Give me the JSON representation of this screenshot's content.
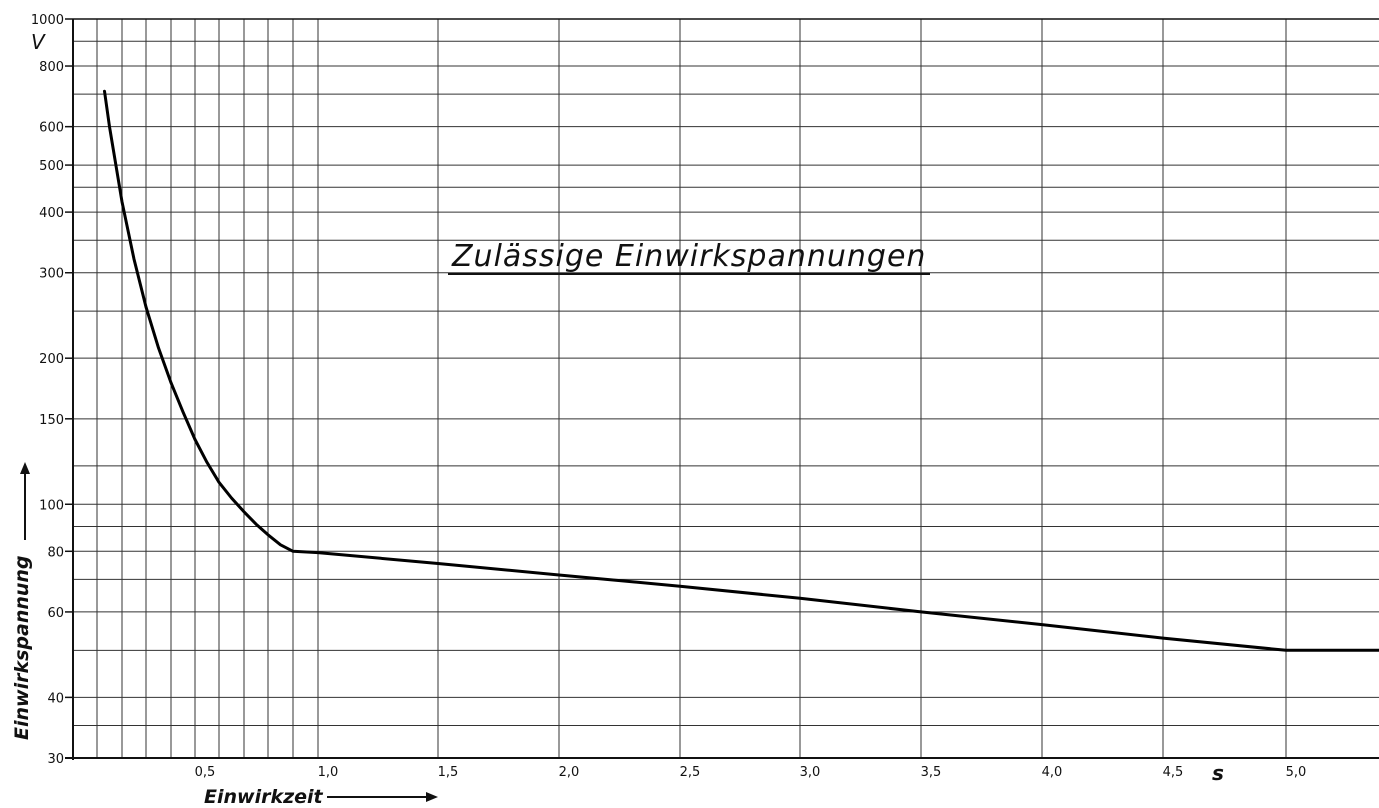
{
  "chart_data": {
    "type": "line",
    "title": "Zulässige Einwirkspannungen",
    "xlabel": "Einwirkzeit",
    "ylabel": "Einwirkspannung",
    "x_unit": "s",
    "y_unit": "V",
    "y_scale": "log",
    "ylim": [
      30,
      1000
    ],
    "xlim": [
      0,
      5.4
    ],
    "grid": true,
    "x_tick_labels": [
      {
        "value": 0.5,
        "label": "0,5"
      },
      {
        "value": 1.0,
        "label": "1,0"
      },
      {
        "value": 1.5,
        "label": "1,5"
      },
      {
        "value": 2.0,
        "label": "2,0"
      },
      {
        "value": 2.5,
        "label": "2,5"
      },
      {
        "value": 3.0,
        "label": "3,0"
      },
      {
        "value": 3.5,
        "label": "3,5"
      },
      {
        "value": 4.0,
        "label": "4,0"
      },
      {
        "value": 4.5,
        "label": "4,5"
      },
      {
        "value": 5.0,
        "label": "5,0"
      }
    ],
    "x_gridlines": [
      0.1,
      0.2,
      0.3,
      0.4,
      0.5,
      0.6,
      0.7,
      0.8,
      0.9,
      1.0,
      1.5,
      2.0,
      2.5,
      3.0,
      3.5,
      4.0,
      4.5,
      5.0
    ],
    "y_tick_labels": [
      {
        "value": 1000,
        "label": "1000"
      },
      {
        "value": 800,
        "label": "800"
      },
      {
        "value": 600,
        "label": "600"
      },
      {
        "value": 500,
        "label": "500"
      },
      {
        "value": 400,
        "label": "400"
      },
      {
        "value": 300,
        "label": "300"
      },
      {
        "value": 200,
        "label": "200"
      },
      {
        "value": 150,
        "label": "150"
      },
      {
        "value": 100,
        "label": "100"
      },
      {
        "value": 80,
        "label": "80"
      },
      {
        "value": 60,
        "label": "60"
      },
      {
        "value": 40,
        "label": "40"
      },
      {
        "value": 30,
        "label": "30"
      }
    ],
    "y_gridlines": [
      1000,
      900,
      800,
      700,
      600,
      500,
      450,
      400,
      350,
      300,
      250,
      200,
      150,
      120,
      100,
      90,
      80,
      70,
      60,
      50,
      40,
      35,
      30
    ],
    "series": [
      {
        "x": [
          0.13,
          0.15,
          0.2,
          0.25,
          0.3,
          0.35,
          0.4,
          0.45,
          0.5,
          0.55,
          0.6,
          0.65,
          0.7,
          0.75,
          0.8,
          0.85,
          0.9,
          1.0,
          1.5,
          2.0,
          2.5,
          3.0,
          3.5,
          4.0,
          4.5,
          5.0,
          5.4
        ],
        "y": [
          710,
          600,
          420,
          320,
          255,
          210,
          178,
          155,
          136,
          122,
          111,
          103,
          96.5,
          91,
          86.5,
          82.5,
          80,
          79.5,
          75.5,
          71.5,
          67.8,
          64,
          60,
          56.5,
          53,
          50,
          50
        ]
      }
    ]
  }
}
